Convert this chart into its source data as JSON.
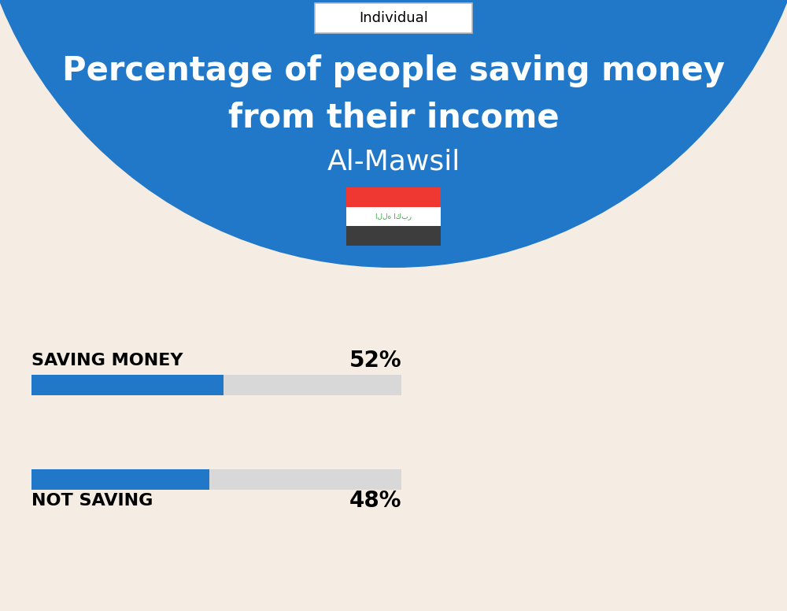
{
  "title_line1": "Percentage of people saving money",
  "title_line2": "from their income",
  "subtitle": "Al-Mawsil",
  "tag": "Individual",
  "bg_top_color": "#2178C8",
  "bg_bottom_color": "#F5EDE3",
  "bar_label_1": "SAVING MONEY",
  "bar_value_1": 52,
  "bar_label_2": "NOT SAVING",
  "bar_value_2": 48,
  "bar_color_active": "#2178C8",
  "bar_color_bg": "#D8D8D8",
  "text_color_dark": "#000000",
  "text_color_white": "#FFFFFF",
  "bar_max": 100,
  "title_fontsize": 30,
  "subtitle_fontsize": 26,
  "tag_fontsize": 13,
  "label_fontsize": 16,
  "value_fontsize": 20,
  "flag_red": "#EE3831",
  "flag_white": "#FFFFFF",
  "flag_black": "#3D3D3D",
  "flag_green": "#37A441"
}
